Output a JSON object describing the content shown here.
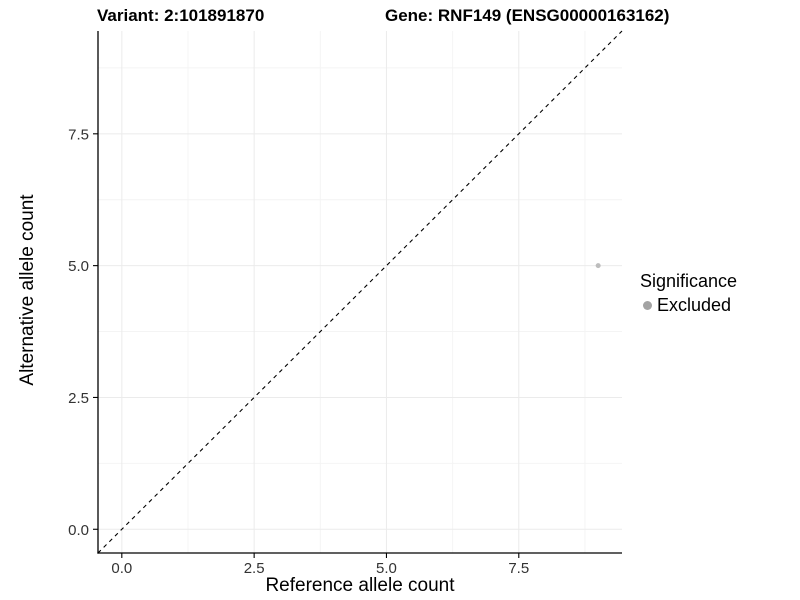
{
  "figure": {
    "variant_title": "Variant: 2:101891870",
    "gene_title": "Gene: RNF149 (ENSG00000163162)"
  },
  "chart_data": {
    "type": "scatter",
    "title_left": "Variant: 2:101891870",
    "title_right": "Gene: RNF149 (ENSG00000163162)",
    "xlabel": "Reference allele count",
    "ylabel": "Alternative allele count",
    "xlim": [
      -0.45,
      9.45
    ],
    "ylim": [
      -0.45,
      9.45
    ],
    "x_major_ticks": [
      0,
      2.5,
      5,
      7.5
    ],
    "x_tick_labels": [
      "0.0",
      "2.5",
      "5.0",
      "7.5"
    ],
    "x_minor_ticks": [
      1.25,
      3.75,
      6.25,
      8.75
    ],
    "y_major_ticks": [
      0,
      2.5,
      5,
      7.5
    ],
    "y_tick_labels": [
      "0.0",
      "2.5",
      "5.0",
      "7.5"
    ],
    "y_minor_ticks": [
      1.25,
      3.75,
      6.25,
      8.75
    ],
    "grid": "major+minor",
    "reference_line": {
      "type": "identity y=x",
      "style": "dashed",
      "color": "#000000"
    },
    "series": [
      {
        "name": "Excluded",
        "color": "#bdbdbd",
        "point_radius": 2.5,
        "points": [
          {
            "x": 9,
            "y": 5
          }
        ]
      }
    ],
    "legend": {
      "title": "Significance",
      "position": "right",
      "items": [
        {
          "label": "Excluded",
          "color": "#a3a3a3"
        }
      ]
    },
    "colors": {
      "background": "#ffffff",
      "grid_major": "#ebebeb",
      "grid_minor": "#f4f4f4",
      "axis": "#000000",
      "tick_label": "#333333"
    }
  }
}
